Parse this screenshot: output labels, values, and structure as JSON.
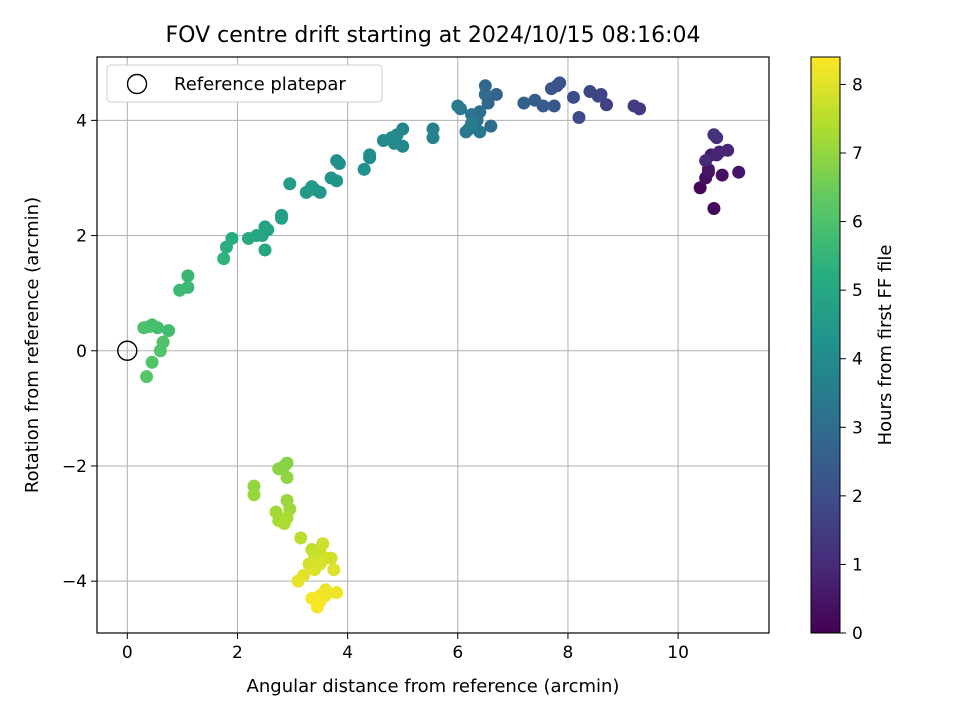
{
  "chart_data": {
    "type": "scatter",
    "title": "FOV centre drift starting at 2024/10/15 08:16:04",
    "xlabel": "Angular distance from reference (arcmin)",
    "ylabel": "Rotation from reference (arcmin)",
    "xlim": [
      -0.55,
      11.65
    ],
    "ylim": [
      -4.9,
      5.1
    ],
    "xticks": [
      0,
      2,
      4,
      6,
      8,
      10
    ],
    "yticks": [
      -4,
      -2,
      0,
      2,
      4
    ],
    "xtick_labels": [
      "0",
      "2",
      "4",
      "6",
      "8",
      "10"
    ],
    "ytick_labels": [
      "−4",
      "−2",
      "0",
      "2",
      "4"
    ],
    "grid": true,
    "legend": {
      "placement": "top-left",
      "label": "Reference platepar"
    },
    "reference_point": {
      "x": 0,
      "y": 0
    },
    "colormap": "viridis",
    "colorbar": {
      "label": "Hours from first FF file",
      "range": [
        0,
        8.4
      ],
      "ticks": [
        0,
        1,
        2,
        3,
        4,
        5,
        6,
        7,
        8
      ],
      "tick_labels": [
        "0",
        "1",
        "2",
        "3",
        "4",
        "5",
        "6",
        "7",
        "8"
      ]
    },
    "points": [
      [
        10.4,
        2.83,
        0.1
      ],
      [
        10.65,
        2.47,
        0.2
      ],
      [
        10.5,
        3.0,
        0.3
      ],
      [
        10.8,
        3.05,
        0.4
      ],
      [
        11.1,
        3.1,
        0.5
      ],
      [
        10.55,
        3.15,
        0.6
      ],
      [
        10.6,
        3.4,
        0.7
      ],
      [
        10.7,
        3.4,
        0.8
      ],
      [
        10.9,
        3.48,
        0.9
      ],
      [
        10.5,
        3.3,
        1.0
      ],
      [
        10.7,
        3.7,
        1.1
      ],
      [
        10.65,
        3.75,
        1.2
      ],
      [
        10.75,
        3.45,
        0.85
      ],
      [
        10.55,
        3.1,
        0.45
      ],
      [
        9.3,
        4.2,
        1.4
      ],
      [
        9.2,
        4.25,
        1.5
      ],
      [
        8.7,
        4.27,
        1.6
      ],
      [
        8.6,
        4.45,
        1.7
      ],
      [
        8.4,
        4.5,
        1.8
      ],
      [
        8.55,
        4.42,
        1.75
      ],
      [
        8.2,
        4.05,
        1.9
      ],
      [
        8.1,
        4.4,
        2.0
      ],
      [
        7.8,
        4.6,
        2.1
      ],
      [
        7.7,
        4.55,
        2.2
      ],
      [
        7.85,
        4.65,
        2.15
      ],
      [
        7.75,
        4.25,
        2.3
      ],
      [
        7.55,
        4.25,
        2.4
      ],
      [
        7.4,
        4.35,
        2.5
      ],
      [
        7.2,
        4.3,
        2.6
      ],
      [
        6.7,
        4.45,
        2.7
      ],
      [
        6.55,
        4.3,
        2.8
      ],
      [
        6.5,
        4.6,
        2.85
      ],
      [
        6.5,
        4.45,
        2.9
      ],
      [
        6.6,
        3.9,
        3.0
      ],
      [
        6.4,
        4.15,
        3.1
      ],
      [
        6.35,
        4.0,
        3.15
      ],
      [
        6.25,
        4.1,
        3.2
      ],
      [
        6.2,
        3.85,
        3.25
      ],
      [
        6.4,
        3.8,
        3.3
      ],
      [
        6.15,
        3.8,
        3.35
      ],
      [
        6.05,
        4.2,
        3.4
      ],
      [
        6.0,
        4.25,
        3.45
      ],
      [
        6.25,
        3.95,
        3.5
      ],
      [
        5.55,
        3.85,
        3.6
      ],
      [
        5.55,
        3.7,
        3.7
      ],
      [
        5.0,
        3.85,
        3.8
      ],
      [
        5.0,
        3.55,
        3.85
      ],
      [
        4.9,
        3.75,
        3.9
      ],
      [
        4.85,
        3.6,
        3.95
      ],
      [
        4.8,
        3.7,
        3.92
      ],
      [
        4.65,
        3.65,
        4.0
      ],
      [
        4.4,
        3.4,
        4.05
      ],
      [
        4.4,
        3.35,
        4.1
      ],
      [
        4.3,
        3.15,
        4.15
      ],
      [
        3.85,
        3.25,
        4.2
      ],
      [
        3.8,
        3.3,
        4.25
      ],
      [
        3.7,
        3.0,
        4.3
      ],
      [
        3.8,
        2.95,
        4.35
      ],
      [
        3.5,
        2.75,
        4.4
      ],
      [
        3.4,
        2.8,
        4.45
      ],
      [
        3.35,
        2.85,
        4.5
      ],
      [
        3.25,
        2.75,
        4.55
      ],
      [
        2.95,
        2.9,
        4.6
      ],
      [
        2.8,
        2.35,
        4.7
      ],
      [
        2.8,
        2.3,
        4.75
      ],
      [
        2.5,
        2.15,
        4.8
      ],
      [
        2.55,
        2.1,
        4.85
      ],
      [
        2.45,
        2.0,
        4.9
      ],
      [
        2.5,
        1.75,
        4.95
      ],
      [
        2.35,
        2.0,
        5.0
      ],
      [
        2.2,
        1.95,
        5.05
      ],
      [
        1.9,
        1.95,
        5.2
      ],
      [
        1.8,
        1.8,
        5.3
      ],
      [
        1.75,
        1.6,
        5.4
      ],
      [
        1.1,
        1.3,
        5.6
      ],
      [
        1.1,
        1.1,
        5.65
      ],
      [
        0.95,
        1.05,
        5.7
      ],
      [
        0.75,
        0.35,
        5.8
      ],
      [
        0.55,
        0.4,
        5.85
      ],
      [
        0.45,
        0.45,
        5.9
      ],
      [
        0.4,
        0.42,
        5.92
      ],
      [
        0.3,
        0.4,
        5.95
      ],
      [
        0.65,
        0.15,
        6.0
      ],
      [
        0.6,
        0.0,
        6.05
      ],
      [
        0.45,
        -0.2,
        6.1
      ],
      [
        0.35,
        -0.45,
        6.15
      ],
      [
        2.9,
        -1.95,
        6.8
      ],
      [
        2.85,
        -2.0,
        6.85
      ],
      [
        2.75,
        -2.05,
        6.9
      ],
      [
        2.9,
        -2.2,
        6.95
      ],
      [
        2.3,
        -2.35,
        7.0
      ],
      [
        2.3,
        -2.5,
        7.05
      ],
      [
        2.9,
        -2.6,
        7.1
      ],
      [
        2.95,
        -2.75,
        7.15
      ],
      [
        2.7,
        -2.8,
        7.2
      ],
      [
        2.75,
        -2.95,
        7.25
      ],
      [
        2.9,
        -2.9,
        7.3
      ],
      [
        2.85,
        -3.0,
        7.35
      ],
      [
        3.15,
        -3.25,
        7.5
      ],
      [
        3.35,
        -3.45,
        7.6
      ],
      [
        3.5,
        -3.5,
        7.65
      ],
      [
        3.4,
        -3.55,
        7.7
      ],
      [
        3.55,
        -3.35,
        7.75
      ],
      [
        3.6,
        -3.6,
        7.8
      ],
      [
        3.7,
        -3.6,
        7.82
      ],
      [
        3.3,
        -3.7,
        7.85
      ],
      [
        3.5,
        -3.7,
        7.9
      ],
      [
        3.4,
        -3.8,
        7.95
      ],
      [
        3.75,
        -3.8,
        8.0
      ],
      [
        3.2,
        -3.9,
        8.05
      ],
      [
        3.1,
        -4.0,
        8.1
      ],
      [
        3.6,
        -4.15,
        8.15
      ],
      [
        3.6,
        -4.25,
        8.2
      ],
      [
        3.8,
        -4.2,
        8.22
      ],
      [
        3.5,
        -4.25,
        8.25
      ],
      [
        3.35,
        -4.3,
        8.3
      ],
      [
        3.5,
        -4.35,
        8.32
      ],
      [
        3.45,
        -4.45,
        8.35
      ]
    ]
  }
}
